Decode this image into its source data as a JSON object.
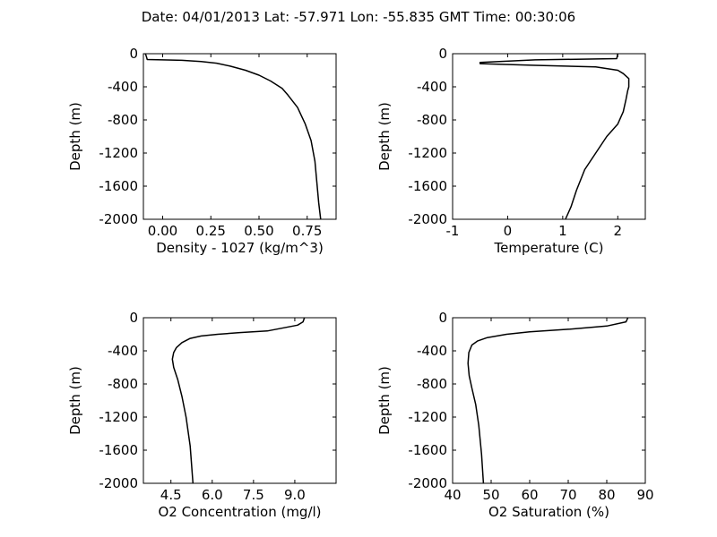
{
  "figure": {
    "title": "Date: 04/01/2013  Lat:  -57.971 Lon:  -55.835  GMT Time: 00:30:06"
  },
  "chart_data": [
    {
      "type": "line",
      "xlabel": "Density - 1027 (kg/m^3)",
      "ylabel": "Depth (m)",
      "xlim": [
        -0.1,
        0.9
      ],
      "ylim": [
        -2000,
        0
      ],
      "xticks": [
        "0.00",
        "0.25",
        "0.50",
        "0.75"
      ],
      "xtick_values": [
        0.0,
        0.25,
        0.5,
        0.75
      ],
      "yticks": [
        "0",
        "-400",
        "-800",
        "-1200",
        "-1600",
        "-2000"
      ],
      "ytick_values": [
        0,
        -400,
        -800,
        -1200,
        -1600,
        -2000
      ],
      "series": [
        {
          "x": [
            -0.09,
            -0.085,
            -0.08,
            0.0,
            0.1,
            0.2,
            0.28,
            0.35,
            0.43,
            0.5,
            0.56,
            0.62,
            0.65,
            0.7,
            0.74,
            0.77,
            0.79,
            0.8,
            0.81,
            0.82
          ],
          "y": [
            0,
            -30,
            -70,
            -75,
            -80,
            -95,
            -115,
            -150,
            -200,
            -260,
            -330,
            -420,
            -500,
            -650,
            -850,
            -1050,
            -1300,
            -1550,
            -1800,
            -2000
          ]
        }
      ]
    },
    {
      "type": "line",
      "xlabel": "Temperature (C)",
      "ylabel": "Depth (m)",
      "xlim": [
        -1,
        2.5
      ],
      "ylim": [
        -2000,
        0
      ],
      "xticks": [
        "-1",
        "0",
        "1",
        "2"
      ],
      "xtick_values": [
        -1,
        0,
        1,
        2
      ],
      "yticks": [
        "0",
        "-400",
        "-800",
        "-1200",
        "-1600",
        "-2000"
      ],
      "ytick_values": [
        0,
        -400,
        -800,
        -1200,
        -1600,
        -2000
      ],
      "series": [
        {
          "x": [
            2.0,
            1.98,
            0.5,
            -0.5,
            -0.5,
            0.5,
            1.6,
            2.0,
            2.1,
            2.2,
            2.2,
            2.18,
            2.15,
            2.1,
            2.0,
            1.8,
            1.6,
            1.4,
            1.25,
            1.15,
            1.05
          ],
          "y": [
            0,
            -60,
            -75,
            -105,
            -120,
            -140,
            -160,
            -200,
            -240,
            -300,
            -400,
            -450,
            -550,
            -700,
            -850,
            -1000,
            -1200,
            -1400,
            -1650,
            -1850,
            -2000
          ]
        }
      ]
    },
    {
      "type": "line",
      "xlabel": "O2 Concentration (mg/l)",
      "ylabel": "Depth (m)",
      "xlim": [
        3.5,
        10.5
      ],
      "ylim": [
        -2000,
        0
      ],
      "xticks": [
        "4.5",
        "6.0",
        "7.5",
        "9.0"
      ],
      "xtick_values": [
        4.5,
        6.0,
        7.5,
        9.0
      ],
      "yticks": [
        "0",
        "-400",
        "-800",
        "-1200",
        "-1600",
        "-2000"
      ],
      "ytick_values": [
        0,
        -400,
        -800,
        -1200,
        -1600,
        -2000
      ],
      "series": [
        {
          "x": [
            9.35,
            9.3,
            9.1,
            8.0,
            7.0,
            6.2,
            5.6,
            5.2,
            4.9,
            4.7,
            4.6,
            4.55,
            4.6,
            4.75,
            4.9,
            5.05,
            5.2,
            5.3
          ],
          "y": [
            0,
            -50,
            -90,
            -160,
            -180,
            -200,
            -220,
            -250,
            -300,
            -360,
            -420,
            -500,
            -600,
            -750,
            -950,
            -1200,
            -1550,
            -2000
          ]
        }
      ]
    },
    {
      "type": "line",
      "xlabel": "O2 Saturation (%)",
      "ylabel": "Depth (m)",
      "xlim": [
        40,
        90
      ],
      "ylim": [
        -2000,
        0
      ],
      "xticks": [
        "40",
        "50",
        "60",
        "70",
        "80",
        "90"
      ],
      "xtick_values": [
        40,
        50,
        60,
        70,
        80,
        90
      ],
      "yticks": [
        "0",
        "-400",
        "-800",
        "-1200",
        "-1600",
        "-2000"
      ],
      "ytick_values": [
        0,
        -400,
        -800,
        -1200,
        -1600,
        -2000
      ],
      "series": [
        {
          "x": [
            85.5,
            85.0,
            80.0,
            70.0,
            60.0,
            54.0,
            49.0,
            46.5,
            45.0,
            44.2,
            44.0,
            44.3,
            45.0,
            46.0,
            46.8,
            47.5,
            48.0
          ],
          "y": [
            0,
            -50,
            -100,
            -140,
            -170,
            -200,
            -240,
            -280,
            -330,
            -420,
            -550,
            -700,
            -850,
            -1050,
            -1300,
            -1650,
            -2000
          ]
        }
      ]
    }
  ]
}
